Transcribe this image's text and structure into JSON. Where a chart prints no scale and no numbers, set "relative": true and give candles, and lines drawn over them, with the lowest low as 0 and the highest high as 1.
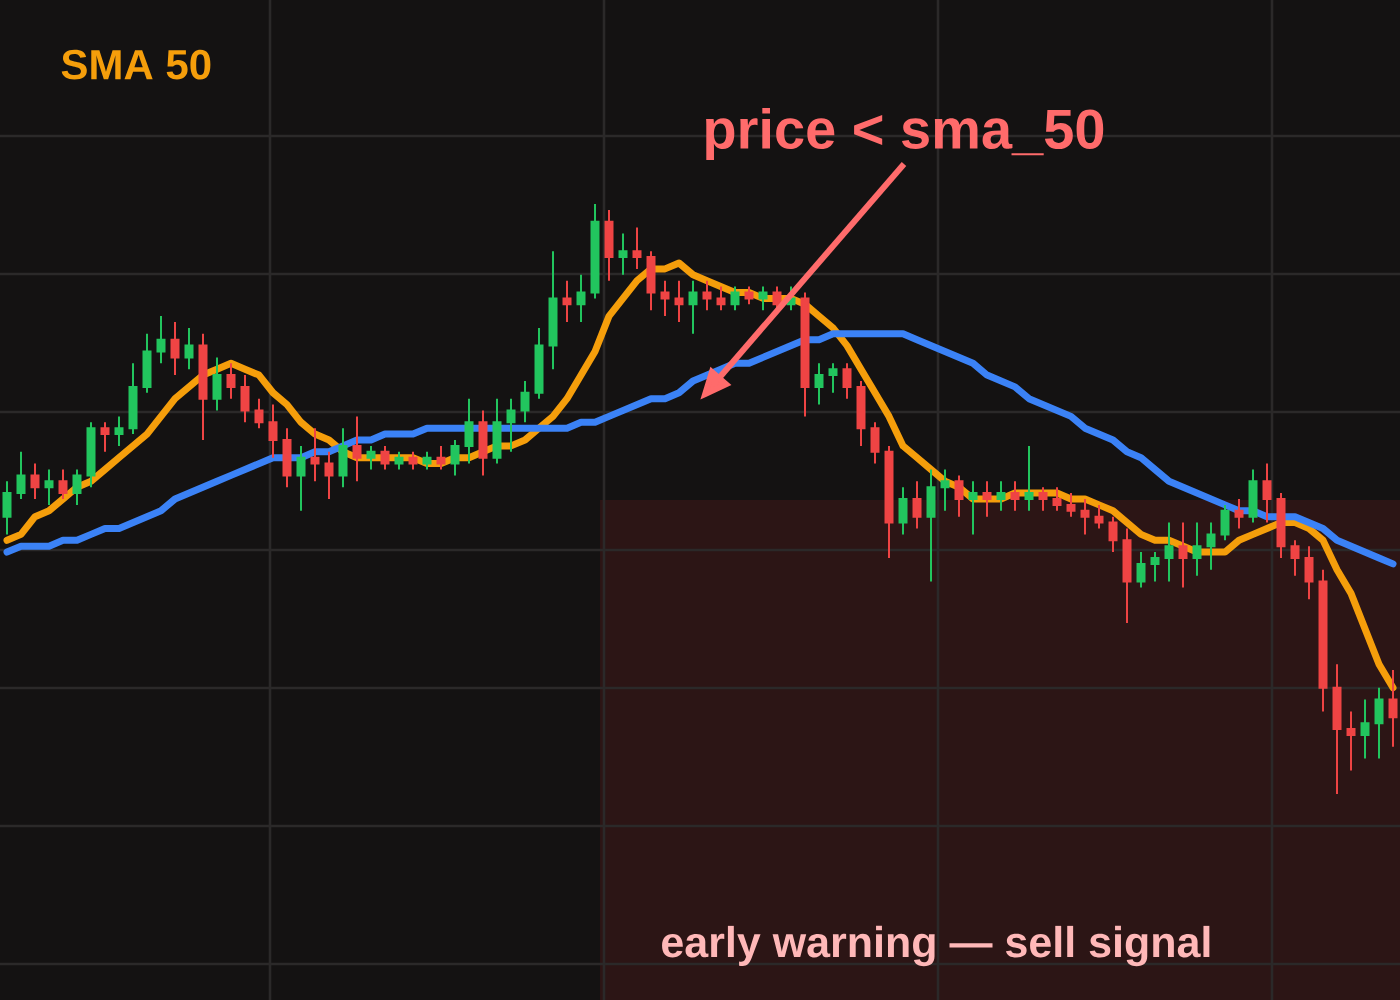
{
  "chart_data": {
    "type": "candlestick",
    "relative": true,
    "categories": [
      null,
      null,
      null,
      null,
      null,
      null,
      null,
      null,
      null,
      null,
      null,
      null,
      null,
      null,
      null,
      null,
      null,
      null,
      null,
      null,
      null,
      null,
      null,
      null,
      null,
      null,
      null,
      null,
      null,
      null,
      null,
      null,
      null,
      null,
      null,
      null,
      null,
      null,
      null,
      null,
      null,
      null,
      null,
      null,
      null,
      null,
      null,
      null,
      null,
      null,
      null,
      null,
      null,
      null,
      null,
      null,
      null,
      null,
      null,
      null,
      null,
      null,
      null,
      null,
      null,
      null,
      null,
      null,
      null,
      null,
      null,
      null,
      null,
      null,
      null,
      null,
      null,
      null,
      null,
      null,
      null,
      null,
      null,
      null,
      null,
      null,
      null,
      null,
      null,
      null,
      null,
      null,
      null,
      null,
      null,
      null,
      null,
      null,
      null,
      null
    ],
    "ohlc": [
      [
        0.47,
        0.53,
        0.44,
        0.51
      ],
      [
        0.51,
        0.58,
        0.5,
        0.54
      ],
      [
        0.54,
        0.56,
        0.5,
        0.52
      ],
      [
        0.52,
        0.55,
        0.49,
        0.53
      ],
      [
        0.53,
        0.55,
        0.5,
        0.51
      ],
      [
        0.51,
        0.55,
        0.49,
        0.54
      ],
      [
        0.54,
        0.63,
        0.52,
        0.62
      ],
      [
        0.62,
        0.63,
        0.58,
        0.61
      ],
      [
        0.61,
        0.64,
        0.59,
        0.62
      ],
      [
        0.62,
        0.73,
        0.61,
        0.69
      ],
      [
        0.69,
        0.78,
        0.68,
        0.75
      ],
      [
        0.75,
        0.81,
        0.73,
        0.77
      ],
      [
        0.77,
        0.8,
        0.71,
        0.74
      ],
      [
        0.74,
        0.79,
        0.72,
        0.76
      ],
      [
        0.76,
        0.78,
        0.6,
        0.67
      ],
      [
        0.67,
        0.74,
        0.65,
        0.71
      ],
      [
        0.71,
        0.73,
        0.67,
        0.69
      ],
      [
        0.69,
        0.71,
        0.63,
        0.65
      ],
      [
        0.65,
        0.67,
        0.62,
        0.63
      ],
      [
        0.63,
        0.66,
        0.57,
        0.6
      ],
      [
        0.6,
        0.62,
        0.52,
        0.54
      ],
      [
        0.54,
        0.59,
        0.48,
        0.57
      ],
      [
        0.57,
        0.62,
        0.53,
        0.56
      ],
      [
        0.56,
        0.58,
        0.5,
        0.54
      ],
      [
        0.54,
        0.62,
        0.52,
        0.59
      ],
      [
        0.59,
        0.64,
        0.53,
        0.57
      ],
      [
        0.57,
        0.59,
        0.55,
        0.58
      ],
      [
        0.58,
        0.59,
        0.55,
        0.56
      ],
      [
        0.56,
        0.58,
        0.55,
        0.57
      ],
      [
        0.57,
        0.58,
        0.55,
        0.56
      ],
      [
        0.56,
        0.58,
        0.55,
        0.57
      ],
      [
        0.57,
        0.59,
        0.55,
        0.56
      ],
      [
        0.56,
        0.6,
        0.54,
        0.59
      ],
      [
        0.59,
        0.67,
        0.56,
        0.63
      ],
      [
        0.63,
        0.65,
        0.54,
        0.57
      ],
      [
        0.57,
        0.67,
        0.56,
        0.63
      ],
      [
        0.63,
        0.67,
        0.58,
        0.65
      ],
      [
        0.65,
        0.7,
        0.63,
        0.68
      ],
      [
        0.68,
        0.79,
        0.67,
        0.76
      ],
      [
        0.76,
        0.92,
        0.72,
        0.84
      ],
      [
        0.84,
        0.87,
        0.8,
        0.83
      ],
      [
        0.83,
        0.88,
        0.8,
        0.85
      ],
      [
        0.85,
        1.0,
        0.84,
        0.97
      ],
      [
        0.97,
        0.99,
        0.87,
        0.91
      ],
      [
        0.91,
        0.95,
        0.88,
        0.92
      ],
      [
        0.92,
        0.96,
        0.89,
        0.91
      ],
      [
        0.91,
        0.92,
        0.82,
        0.85
      ],
      [
        0.85,
        0.87,
        0.81,
        0.84
      ],
      [
        0.84,
        0.87,
        0.8,
        0.83
      ],
      [
        0.83,
        0.87,
        0.78,
        0.85
      ],
      [
        0.85,
        0.87,
        0.82,
        0.84
      ],
      [
        0.84,
        0.86,
        0.82,
        0.83
      ],
      [
        0.83,
        0.86,
        0.82,
        0.85
      ],
      [
        0.85,
        0.86,
        0.83,
        0.84
      ],
      [
        0.84,
        0.86,
        0.82,
        0.85
      ],
      [
        0.85,
        0.86,
        0.82,
        0.83
      ],
      [
        0.83,
        0.86,
        0.82,
        0.84
      ],
      [
        0.84,
        0.85,
        0.64,
        0.69
      ],
      [
        0.69,
        0.73,
        0.66,
        0.71
      ],
      [
        0.71,
        0.73,
        0.68,
        0.72
      ],
      [
        0.72,
        0.73,
        0.67,
        0.69
      ],
      [
        0.69,
        0.7,
        0.59,
        0.62
      ],
      [
        0.62,
        0.63,
        0.56,
        0.58
      ],
      [
        0.58,
        0.59,
        0.4,
        0.46
      ],
      [
        0.46,
        0.52,
        0.44,
        0.5
      ],
      [
        0.5,
        0.53,
        0.45,
        0.47
      ],
      [
        0.47,
        0.55,
        0.36,
        0.52
      ],
      [
        0.52,
        0.55,
        0.48,
        0.53
      ],
      [
        0.53,
        0.54,
        0.47,
        0.5
      ],
      [
        0.5,
        0.53,
        0.44,
        0.51
      ],
      [
        0.51,
        0.53,
        0.47,
        0.5
      ],
      [
        0.5,
        0.53,
        0.48,
        0.51
      ],
      [
        0.51,
        0.53,
        0.48,
        0.5
      ],
      [
        0.5,
        0.59,
        0.48,
        0.51
      ],
      [
        0.51,
        0.52,
        0.48,
        0.5
      ],
      [
        0.5,
        0.52,
        0.48,
        0.49
      ],
      [
        0.49,
        0.51,
        0.47,
        0.48
      ],
      [
        0.48,
        0.5,
        0.44,
        0.47
      ],
      [
        0.47,
        0.49,
        0.45,
        0.46
      ],
      [
        0.46,
        0.47,
        0.41,
        0.43
      ],
      [
        0.43,
        0.45,
        0.29,
        0.36
      ],
      [
        0.36,
        0.41,
        0.35,
        0.39
      ],
      [
        0.39,
        0.41,
        0.36,
        0.4
      ],
      [
        0.4,
        0.46,
        0.36,
        0.42
      ],
      [
        0.42,
        0.46,
        0.35,
        0.4
      ],
      [
        0.4,
        0.46,
        0.37,
        0.42
      ],
      [
        0.42,
        0.46,
        0.38,
        0.44
      ],
      [
        0.44,
        0.49,
        0.43,
        0.48
      ],
      [
        0.48,
        0.5,
        0.45,
        0.47
      ],
      [
        0.47,
        0.55,
        0.46,
        0.53
      ],
      [
        0.53,
        0.56,
        0.46,
        0.5
      ],
      [
        0.5,
        0.51,
        0.4,
        0.42
      ],
      [
        0.42,
        0.43,
        0.37,
        0.4
      ],
      [
        0.4,
        0.42,
        0.33,
        0.36
      ],
      [
        0.36,
        0.38,
        0.14,
        0.18
      ],
      [
        0.18,
        0.22,
        0,
        0.11
      ],
      [
        0.11,
        0.14,
        0.04,
        0.1
      ],
      [
        0.1,
        0.16,
        0.06,
        0.12
      ],
      [
        0.12,
        0.18,
        0.06,
        0.16
      ],
      [
        0.16,
        0.21,
        0.08,
        0.13
      ]
    ],
    "colors": [
      "#22c55e",
      "#22c55e",
      "#ef4444",
      "#22c55e",
      "#ef4444",
      "#22c55e",
      "#22c55e",
      "#ef4444",
      "#22c55e",
      "#22c55e",
      "#22c55e",
      "#22c55e",
      "#ef4444",
      "#22c55e",
      "#ef4444",
      "#22c55e",
      "#ef4444",
      "#ef4444",
      "#ef4444",
      "#ef4444",
      "#ef4444",
      "#22c55e",
      "#ef4444",
      "#ef4444",
      "#22c55e",
      "#ef4444",
      "#22c55e",
      "#ef4444",
      "#22c55e",
      "#ef4444",
      "#22c55e",
      "#ef4444",
      "#22c55e",
      "#22c55e",
      "#ef4444",
      "#22c55e",
      "#22c55e",
      "#22c55e",
      "#22c55e",
      "#22c55e",
      "#ef4444",
      "#22c55e",
      "#22c55e",
      "#ef4444",
      "#22c55e",
      "#ef4444",
      "#ef4444",
      "#ef4444",
      "#ef4444",
      "#22c55e",
      "#ef4444",
      "#ef4444",
      "#22c55e",
      "#ef4444",
      "#22c55e",
      "#ef4444",
      "#22c55e",
      "#ef4444",
      "#22c55e",
      "#22c55e",
      "#ef4444",
      "#ef4444",
      "#ef4444",
      "#ef4444",
      "#22c55e",
      "#ef4444",
      "#22c55e",
      "#22c55e",
      "#ef4444",
      "#22c55e",
      "#ef4444",
      "#22c55e",
      "#ef4444",
      "#22c55e",
      "#ef4444",
      "#ef4444",
      "#ef4444",
      "#ef4444",
      "#ef4444",
      "#ef4444",
      "#ef4444",
      "#22c55e",
      "#22c55e",
      "#22c55e",
      "#ef4444",
      "#22c55e",
      "#22c55e",
      "#22c55e",
      "#ef4444",
      "#22c55e",
      "#ef4444",
      "#ef4444",
      "#ef4444",
      "#ef4444",
      "#ef4444",
      "#ef4444",
      "#ef4444",
      "#22c55e",
      "#22c55e",
      "#ef4444"
    ],
    "series": [
      {
        "name": "SMA 50",
        "type": "line",
        "color": "#f59e0b",
        "values": [
          0.43,
          0.44,
          0.47,
          0.48,
          0.5,
          0.52,
          0.53,
          0.55,
          0.57,
          0.59,
          0.61,
          0.64,
          0.67,
          0.69,
          0.71,
          0.72,
          0.73,
          0.72,
          0.71,
          0.68,
          0.66,
          0.63,
          0.61,
          0.6,
          0.58,
          0.57,
          0.57,
          0.57,
          0.57,
          0.57,
          0.56,
          0.56,
          0.57,
          0.57,
          0.58,
          0.59,
          0.59,
          0.6,
          0.62,
          0.64,
          0.67,
          0.71,
          0.75,
          0.81,
          0.84,
          0.87,
          0.89,
          0.89,
          0.9,
          0.88,
          0.87,
          0.86,
          0.85,
          0.85,
          0.84,
          0.84,
          0.84,
          0.83,
          0.81,
          0.79,
          0.76,
          0.72,
          0.68,
          0.64,
          0.59,
          0.57,
          0.55,
          0.53,
          0.52,
          0.5,
          0.5,
          0.5,
          0.51,
          0.51,
          0.51,
          0.51,
          0.5,
          0.5,
          0.49,
          0.48,
          0.46,
          0.44,
          0.43,
          0.43,
          0.42,
          0.41,
          0.41,
          0.41,
          0.43,
          0.44,
          0.45,
          0.46,
          0.46,
          0.45,
          0.43,
          0.38,
          0.34,
          0.28,
          0.22,
          0.18
        ]
      },
      {
        "type": "line",
        "color": "#3b82f6",
        "values": [
          0.41,
          0.42,
          0.42,
          0.42,
          0.43,
          0.43,
          0.44,
          0.45,
          0.45,
          0.46,
          0.47,
          0.48,
          0.5,
          0.51,
          0.52,
          0.53,
          0.54,
          0.55,
          0.56,
          0.57,
          0.57,
          0.57,
          0.58,
          0.58,
          0.59,
          0.6,
          0.6,
          0.61,
          0.61,
          0.61,
          0.62,
          0.62,
          0.62,
          0.62,
          0.62,
          0.62,
          0.62,
          0.62,
          0.62,
          0.62,
          0.62,
          0.63,
          0.63,
          0.64,
          0.65,
          0.66,
          0.67,
          0.67,
          0.68,
          0.7,
          0.71,
          0.72,
          0.73,
          0.73,
          0.74,
          0.75,
          0.76,
          0.77,
          0.77,
          0.78,
          0.78,
          0.78,
          0.78,
          0.78,
          0.78,
          0.77,
          0.76,
          0.75,
          0.74,
          0.73,
          0.71,
          0.7,
          0.69,
          0.67,
          0.66,
          0.65,
          0.64,
          0.62,
          0.61,
          0.6,
          0.58,
          0.57,
          0.55,
          0.53,
          0.52,
          0.51,
          0.5,
          0.49,
          0.48,
          0.48,
          0.47,
          0.47,
          0.47,
          0.46,
          0.45,
          0.43,
          0.42,
          0.41,
          0.4,
          0.39
        ]
      }
    ],
    "annotations": [
      "price < sma_50",
      "early warning — sell signal"
    ],
    "grid": true,
    "legend": "top left"
  }
}
